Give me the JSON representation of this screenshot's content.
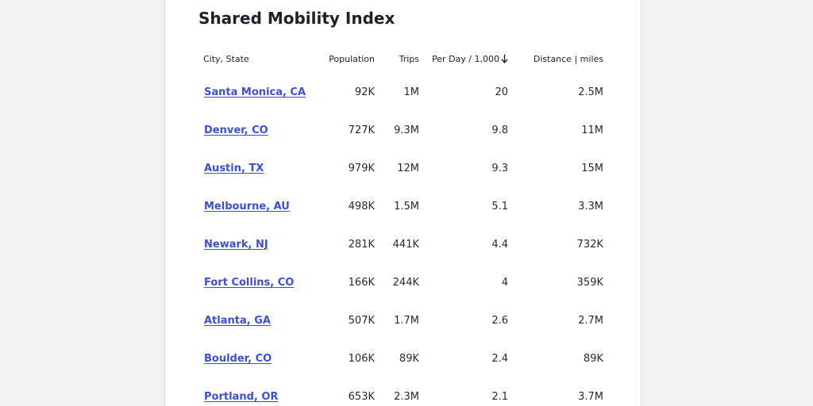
{
  "title": "Shared Mobility Index",
  "columns": {
    "city": "City, State",
    "population": "Population",
    "trips": "Trips",
    "per_day": "Per Day / 1,000",
    "distance": "Distance | miles"
  },
  "sort": {
    "column": "per_day",
    "direction": "descending",
    "icon": "arrow-down-icon"
  },
  "rows": [
    {
      "city": "Santa Monica, CA",
      "population": "92K",
      "trips": "1M",
      "per_day": "20",
      "distance": "2.5M"
    },
    {
      "city": "Denver, CO",
      "population": "727K",
      "trips": "9.3M",
      "per_day": "9.8",
      "distance": "11M"
    },
    {
      "city": "Austin, TX",
      "population": "979K",
      "trips": "12M",
      "per_day": "9.3",
      "distance": "15M"
    },
    {
      "city": "Melbourne, AU",
      "population": "498K",
      "trips": "1.5M",
      "per_day": "5.1",
      "distance": "3.3M"
    },
    {
      "city": "Newark, NJ",
      "population": "281K",
      "trips": "441K",
      "per_day": "4.4",
      "distance": "732K"
    },
    {
      "city": "Fort Collins, CO",
      "population": "166K",
      "trips": "244K",
      "per_day": "4",
      "distance": "359K"
    },
    {
      "city": "Atlanta, GA",
      "population": "507K",
      "trips": "1.7M",
      "per_day": "2.6",
      "distance": "2.7M"
    },
    {
      "city": "Boulder, CO",
      "population": "106K",
      "trips": "89K",
      "per_day": "2.4",
      "distance": "89K"
    },
    {
      "city": "Portland, OR",
      "population": "653K",
      "trips": "2.3M",
      "per_day": "2.1",
      "distance": "3.7M"
    }
  ],
  "colors": {
    "link": "#3b4fd9",
    "text": "#1d2228",
    "background": "#f1f1f1",
    "card": "#ffffff"
  }
}
